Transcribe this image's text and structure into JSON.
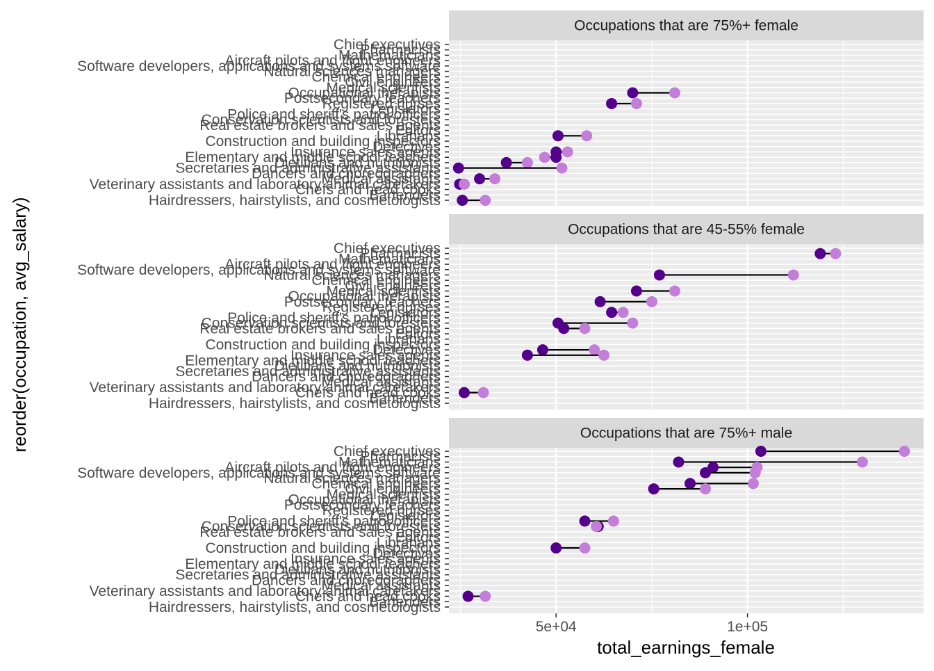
{
  "chart_data": {
    "type": "dumbbell",
    "xlabel": "total_earnings_female",
    "ylabel": "reorder(occupation, avg_salary)",
    "xlim": [
      22000,
      146000
    ],
    "x_ticks": [
      50000,
      100000
    ],
    "x_tick_labels": [
      "5e+04",
      "1e+05"
    ],
    "grid": true,
    "colors": {
      "start_point": "#54008c",
      "end_point": "#c27ed9",
      "segment": "#000000",
      "strip_bg": "#d9d9d9",
      "panel_bg": "#ebebeb"
    },
    "categories": [
      "Chief executives",
      "Pharmacists",
      "Mathematicians",
      "Aircraft pilots and flight engineers",
      "Software developers, applications and systems software",
      "Natural sciences managers",
      "Chemical engineers",
      "Civil engineers",
      "Medical scientists",
      "Occupational therapists",
      "Postsecondary teachers",
      "Registered nurses",
      "Legislators",
      "Police and sheriff's patrol officers",
      "Conservation scientists and foresters",
      "Real estate brokers and sales agents",
      "Editors",
      "Librarians",
      "Construction and building inspectors",
      "Detectives",
      "Insurance sales agents",
      "Elementary and middle school teachers",
      "Dietitians and nutritionists",
      "Secretaries and administrative assistants",
      "Dancers and choreographers",
      "Medical assistants",
      "Veterinary assistants and laboratory animal caretakers",
      "Chefs and head cooks",
      "Bartenders",
      "Hairdressers, hairstylists, and cosmetologists"
    ],
    "panels": [
      {
        "title": "Occupations that are 75%+ female",
        "rows": [
          {
            "occupation": "Occupational therapists",
            "start": 70000,
            "end": 81000
          },
          {
            "occupation": "Registered nurses",
            "start": 64500,
            "end": 71000
          },
          {
            "occupation": "Librarians",
            "start": 50500,
            "end": 58000
          },
          {
            "occupation": "Insurance sales agents",
            "start": 50000,
            "end": 53000
          },
          {
            "occupation": "Elementary and middle school teachers",
            "start": 50000,
            "end": 47000
          },
          {
            "occupation": "Dietitians and nutritionists",
            "start": 37000,
            "end": 42500
          },
          {
            "occupation": "Secretaries and administrative assistants",
            "start": 24500,
            "end": 51500
          },
          {
            "occupation": "Medical assistants",
            "start": 30000,
            "end": 34000
          },
          {
            "occupation": "Veterinary assistants and laboratory animal caretakers",
            "start": 24800,
            "end": 26000
          },
          {
            "occupation": "Hairdressers, hairstylists, and cosmetologists",
            "start": 25500,
            "end": 31500
          }
        ]
      },
      {
        "title": "Occupations that are 45-55% female",
        "rows": [
          {
            "occupation": "Pharmacists",
            "start": 119000,
            "end": 123000
          },
          {
            "occupation": "Natural sciences managers",
            "start": 77000,
            "end": 112000
          },
          {
            "occupation": "Medical scientists",
            "start": 71000,
            "end": 81000
          },
          {
            "occupation": "Postsecondary teachers",
            "start": 61500,
            "end": 75000
          },
          {
            "occupation": "Legislators",
            "start": 64500,
            "end": 67500
          },
          {
            "occupation": "Conservation scientists and foresters",
            "start": 50500,
            "end": 70000
          },
          {
            "occupation": "Real estate brokers and sales agents",
            "start": 52000,
            "end": 57500
          },
          {
            "occupation": "Detectives",
            "start": 46500,
            "end": 60000
          },
          {
            "occupation": "Insurance sales agents",
            "start": 42500,
            "end": 62500
          },
          {
            "occupation": "Chefs and head cooks",
            "start": 26000,
            "end": 31000
          }
        ]
      },
      {
        "title": "Occupations that are 75%+ male",
        "rows": [
          {
            "occupation": "Chief executives",
            "start": 103500,
            "end": 141000
          },
          {
            "occupation": "Mathematicians",
            "start": 82000,
            "end": 130000
          },
          {
            "occupation": "Aircraft pilots and flight engineers",
            "start": 91000,
            "end": 102500
          },
          {
            "occupation": "Software developers, applications and systems software",
            "start": 89000,
            "end": 102000
          },
          {
            "occupation": "Chemical engineers",
            "start": 85000,
            "end": 101500
          },
          {
            "occupation": "Civil engineers",
            "start": 75500,
            "end": 89000
          },
          {
            "occupation": "Police and sheriff's patrol officers",
            "start": 57500,
            "end": 65000
          },
          {
            "occupation": "Conservation scientists and foresters",
            "start": 61000,
            "end": 60500
          },
          {
            "occupation": "Construction and building inspectors",
            "start": 50000,
            "end": 57500
          },
          {
            "occupation": "Chefs and head cooks",
            "start": 27000,
            "end": 31500
          }
        ]
      }
    ]
  }
}
